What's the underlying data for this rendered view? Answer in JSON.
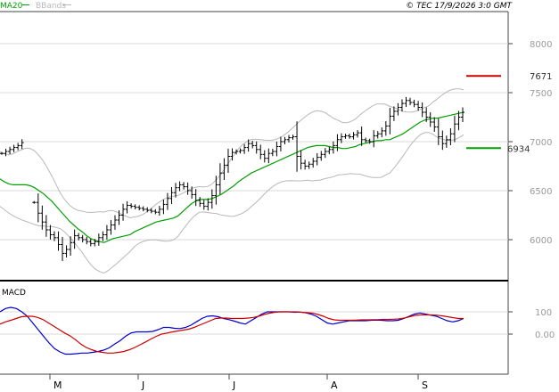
{
  "header": {
    "legend": [
      {
        "label": "MA20",
        "color": "#00a000"
      },
      {
        "label": "BBands",
        "color": "#b8b8b8"
      }
    ],
    "copyright": "© TEC 17/9/2026 3:0 GMT"
  },
  "macd_label": "MACD",
  "colors": {
    "price": "#000000",
    "ma20": "#00a000",
    "bbands": "#b8b8b8",
    "macd": "#0000cc",
    "signal": "#cc0000",
    "grid": "#d8d8d8",
    "resistance": "#cc0000",
    "support": "#00a000"
  },
  "chart_data": [
    {
      "type": "ohlc",
      "ylim": [
        5640,
        8450
      ],
      "y_ticks": [
        8000,
        7500,
        7000,
        6500,
        6000
      ],
      "y_tick_labels": [
        "8000",
        "7500",
        "7000",
        "6500",
        "6000"
      ],
      "x_labels": [
        "M",
        "J",
        "J",
        "A",
        "S"
      ],
      "levels": [
        {
          "label": "7671",
          "value": 7671,
          "color": "#cc0000"
        },
        {
          "label": "6934",
          "value": 6934,
          "color": "#00a000"
        }
      ],
      "series": [
        {
          "name": "price",
          "values": [
            6880,
            6900,
            6920,
            6940,
            6960,
            6990,
            null,
            null,
            6380,
            6270,
            6180,
            6100,
            6050,
            6020,
            5950,
            5860,
            5900,
            5970,
            6040,
            6020,
            6000,
            5980,
            5960,
            5980,
            6020,
            6050,
            6100,
            6150,
            6200,
            6250,
            6310,
            6350,
            6340,
            6330,
            6320,
            6310,
            6300,
            6290,
            6280,
            6310,
            6360,
            6420,
            6480,
            6530,
            6560,
            6540,
            6500,
            6460,
            6400,
            6370,
            6340,
            6380,
            6450,
            6560,
            6680,
            6760,
            6850,
            6890,
            6900,
            6910,
            6940,
            6980,
            6960,
            6920,
            6870,
            6830,
            6880,
            6900,
            6950,
            7000,
            7020,
            7040,
            7050,
            6850,
            6780,
            6750,
            6770,
            6800,
            6840,
            6870,
            6900,
            6920,
            6960,
            7020,
            7050,
            7060,
            7050,
            7070,
            7090,
            7020,
            7010,
            7000,
            7060,
            7080,
            7110,
            7160,
            7260,
            7310,
            7350,
            7390,
            7420,
            7400,
            7380,
            7350,
            7300,
            7250,
            7200,
            7150,
            7050,
            6980,
            7020,
            7080,
            7180,
            7250,
            7300
          ]
        },
        {
          "name": "MA20",
          "values": [
            6620,
            6590,
            6570,
            6560,
            6560,
            6560,
            6560,
            6550,
            6530,
            6500,
            6470,
            6430,
            6390,
            6340,
            6290,
            6240,
            6190,
            6150,
            6110,
            6080,
            6040,
            6010,
            5990,
            5980,
            5970,
            5990,
            6010,
            6020,
            6030,
            6040,
            6050,
            6080,
            6100,
            6120,
            6140,
            6160,
            6180,
            6190,
            6200,
            6210,
            6220,
            6240,
            6280,
            6320,
            6360,
            6390,
            6410,
            6410,
            6410,
            6420,
            6440,
            6460,
            6490,
            6520,
            6550,
            6590,
            6620,
            6650,
            6680,
            6700,
            6720,
            6740,
            6760,
            6780,
            6800,
            6820,
            6840,
            6860,
            6880,
            6900,
            6920,
            6940,
            6950,
            6960,
            6960,
            6960,
            6950,
            6940,
            6940,
            6930,
            6930,
            6940,
            6950,
            6970,
            6980,
            6990,
            7000,
            7010,
            7010,
            7020,
            7020,
            7040,
            7060,
            7080,
            7110,
            7140,
            7170,
            7200,
            7220,
            7230,
            7240,
            7240,
            7250,
            7260,
            7270,
            7280,
            7290,
            7300
          ]
        }
      ]
    },
    {
      "type": "line",
      "title": "MACD",
      "y_tick_labels": [
        "100",
        "0.00"
      ],
      "series": [
        {
          "name": "MACD",
          "values": [
            100,
            115,
            120,
            115,
            100,
            80,
            50,
            20,
            -10,
            -40,
            -65,
            -80,
            -90,
            -90,
            -88,
            -85,
            -85,
            -82,
            -78,
            -72,
            -62,
            -45,
            -30,
            -10,
            5,
            10,
            10,
            10,
            12,
            20,
            30,
            30,
            26,
            25,
            30,
            40,
            55,
            70,
            80,
            82,
            78,
            70,
            65,
            58,
            50,
            45,
            60,
            75,
            90,
            100,
            100,
            100,
            100,
            100,
            98,
            99,
            96,
            90,
            80,
            65,
            50,
            45,
            50,
            55,
            60,
            60,
            60,
            60,
            62,
            63,
            62,
            60,
            60,
            62,
            70,
            80,
            90,
            95,
            90,
            85,
            80,
            70,
            60,
            55,
            60,
            70
          ]
        },
        {
          "name": "signal",
          "values": [
            45,
            55,
            62,
            70,
            78,
            80,
            80,
            75,
            65,
            50,
            35,
            20,
            5,
            -8,
            -25,
            -45,
            -60,
            -70,
            -78,
            -82,
            -85,
            -85,
            -82,
            -78,
            -70,
            -60,
            -48,
            -35,
            -22,
            -10,
            0,
            5,
            10,
            14,
            18,
            22,
            30,
            40,
            50,
            60,
            70,
            72,
            72,
            70,
            70,
            70,
            72,
            75,
            80,
            88,
            94,
            98,
            100,
            100,
            100,
            100,
            98,
            96,
            94,
            88,
            80,
            70,
            64,
            62,
            62,
            62,
            63,
            64,
            64,
            65,
            65,
            66,
            66,
            67,
            68,
            72,
            78,
            84,
            86,
            86,
            86,
            85,
            82,
            78,
            74,
            70,
            70
          ]
        }
      ]
    }
  ]
}
